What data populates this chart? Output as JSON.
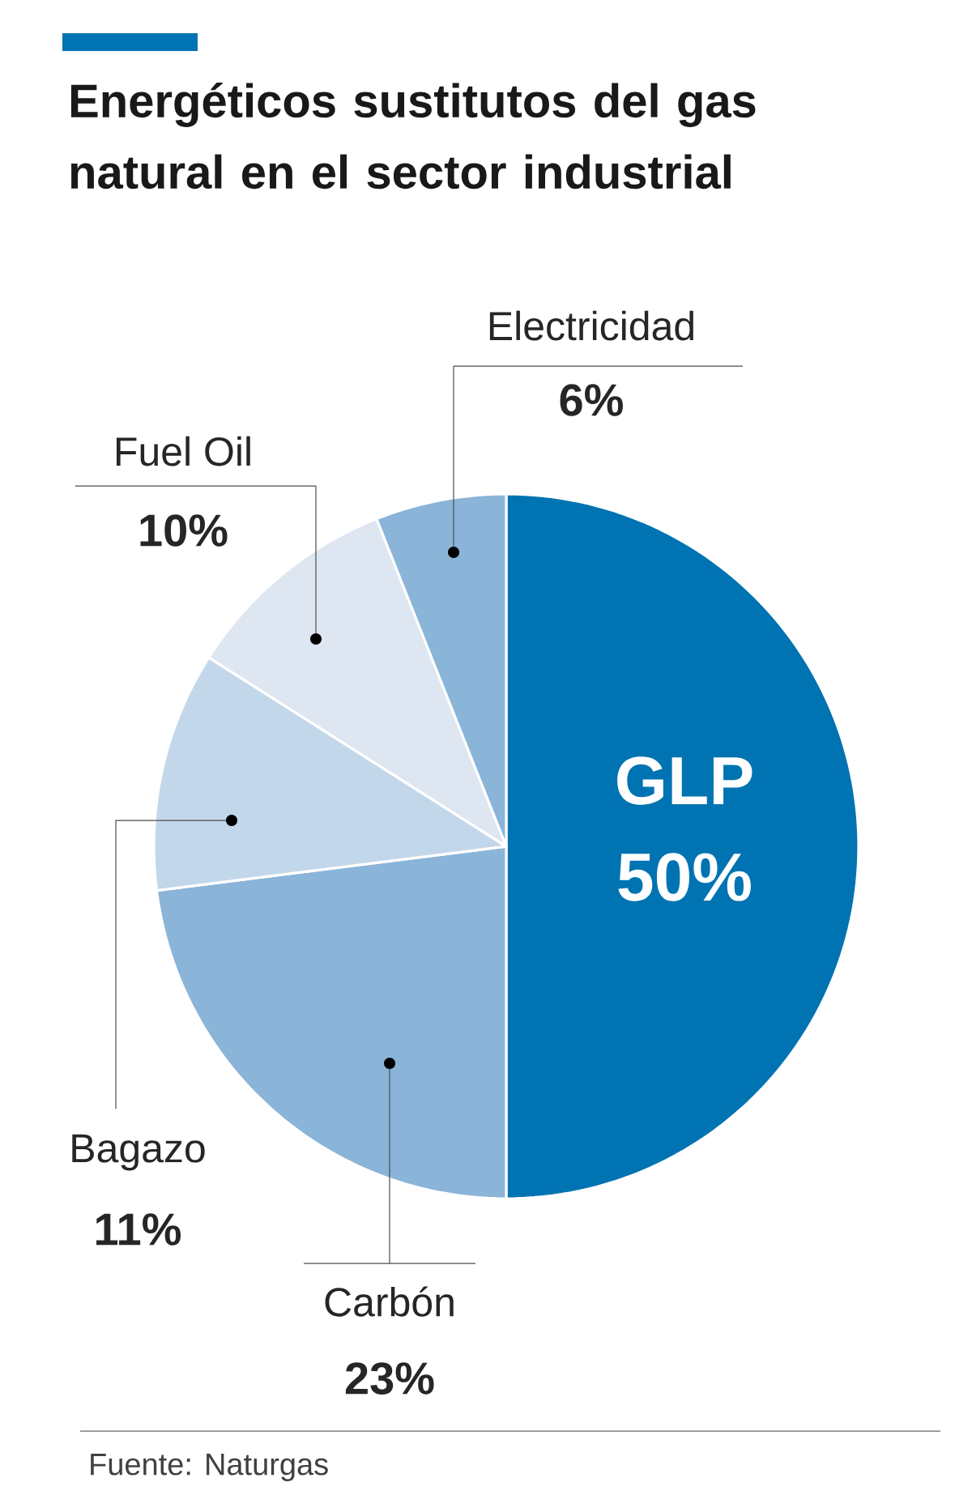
{
  "chart_data": {
    "type": "pie",
    "title": "Energéticos sustitutos del gas natural en el sector industrial",
    "categories": [
      "GLP",
      "Carbón",
      "Bagazo",
      "Fuel Oil",
      "Electricidad"
    ],
    "values": [
      50,
      23,
      11,
      10,
      6
    ],
    "value_labels": [
      "50%",
      "23%",
      "11%",
      "10%",
      "6%"
    ],
    "colors": [
      "#0073b2",
      "#8ab4d8",
      "#c3d7ea",
      "#dde6f1",
      "#8ab4d8"
    ],
    "annotations": [
      "Fuente: Naturgas"
    ]
  }
}
